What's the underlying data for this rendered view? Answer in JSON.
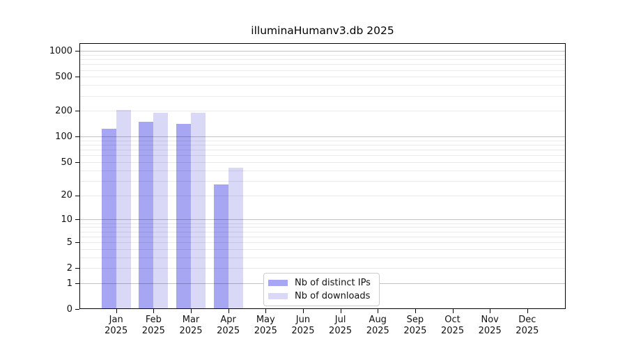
{
  "chart_data": {
    "type": "bar",
    "title": "illuminaHumanv3.db 2025",
    "categories": [
      "Jan",
      "Feb",
      "Mar",
      "Apr",
      "May",
      "Jun",
      "Jul",
      "Aug",
      "Sep",
      "Oct",
      "Nov",
      "Dec"
    ],
    "x_tick_second_line": "2025",
    "series": [
      {
        "name": "Nb of distinct IPs",
        "color": "#a6a6f2",
        "values": [
          124,
          150,
          140,
          27,
          null,
          null,
          null,
          null,
          null,
          null,
          null,
          null
        ]
      },
      {
        "name": "Nb of downloads",
        "color": "#d9d9f7",
        "values": [
          205,
          190,
          190,
          43,
          null,
          null,
          null,
          null,
          null,
          null,
          null,
          null
        ]
      }
    ],
    "y_scale": "log10(value+1)",
    "y_ticks": [
      0,
      1,
      2,
      5,
      10,
      20,
      50,
      100,
      200,
      500,
      1000
    ],
    "ylim": [
      0,
      1230
    ],
    "xlabel": "",
    "ylabel": "",
    "grid": "horizontal, minor lines light gray, decade lines darker",
    "legend_position": "inside bottom-center",
    "colors": {
      "background": "#ffffff",
      "frame": "#000000",
      "tick_label": "#111111",
      "minor_gridline": "#e9e9e9",
      "major_gridline": "#c2c2c2",
      "legend_border": "#cccccc"
    }
  }
}
